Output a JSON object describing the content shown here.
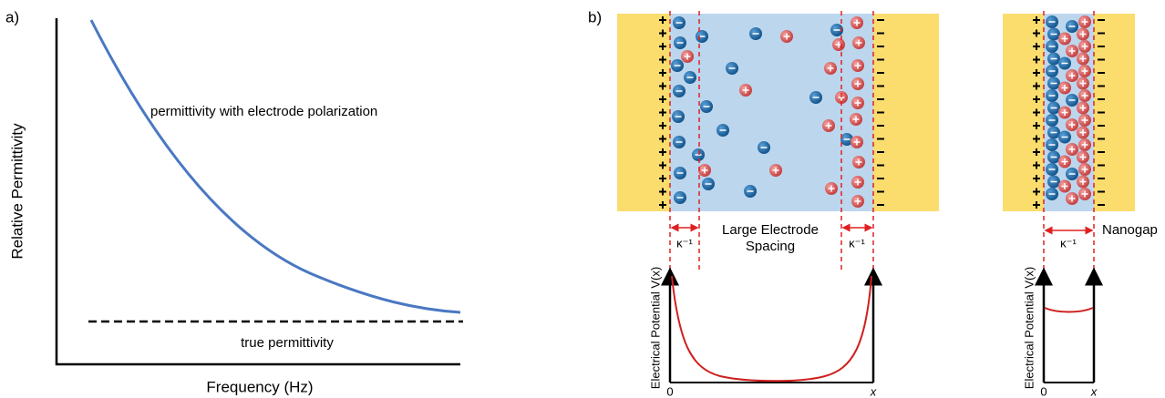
{
  "panel_a": {
    "label": "a)",
    "y_axis_label": "Relative Permittivity",
    "x_axis_label": "Frequency (Hz)",
    "curve_label": "permittivity with electrode polarization",
    "baseline_label": "true permittivity"
  },
  "panel_b": {
    "label": "b)",
    "large_spacing_label": [
      "Large Electrode",
      "Spacing"
    ],
    "nanogap_label": "Nanogap",
    "debye_labels": [
      "κ⁻¹",
      "κ⁻¹",
      "κ⁻¹"
    ],
    "potential_plots": [
      {
        "y_axis_label": "Electrical Potential V(x)",
        "origin_label": "0",
        "x_label": "x"
      },
      {
        "y_axis_label": "Electrical Potential V(x)",
        "origin_label": "0",
        "x_label": "x"
      }
    ]
  }
}
